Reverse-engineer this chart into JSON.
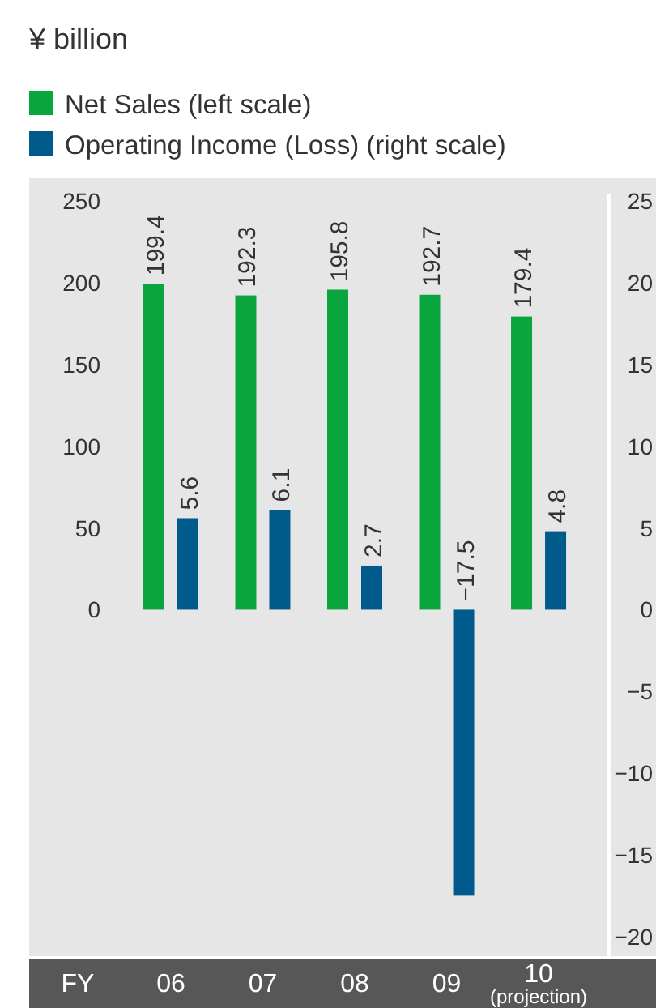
{
  "chart_data": {
    "type": "bar",
    "title": "¥ billion",
    "xlabel": "FY",
    "categories": [
      "06",
      "07",
      "08",
      "09",
      "10\n(projection)"
    ],
    "series": [
      {
        "name": "Net Sales (left scale)",
        "color": "#0aa53c",
        "values": [
          199.4,
          192.3,
          195.8,
          192.7,
          179.4
        ],
        "value_labels": [
          "199.4",
          "192.3",
          "195.8",
          "192.7",
          "179.4"
        ]
      },
      {
        "name": "Operating Income (Loss) (right scale)",
        "color": "#005a8c",
        "axis": "y2",
        "values": [
          5.6,
          6.1,
          2.7,
          -17.5,
          4.8
        ],
        "value_labels": [
          "5.6",
          "6.1",
          "2.7",
          "−17.5",
          "4.8"
        ]
      }
    ],
    "ylim": [
      -212,
      262
    ],
    "yticks": [
      0,
      50,
      100,
      150,
      200,
      250
    ],
    "y2lim": [
      -21.2,
      26.2
    ],
    "y2ticks": [
      {
        "value": -20,
        "label": "−20"
      },
      {
        "value": -15,
        "label": "−15"
      },
      {
        "value": -10,
        "label": "−10"
      },
      {
        "value": -5,
        "label": "−5"
      },
      0,
      5,
      10,
      15,
      20,
      25
    ],
    "grid": false,
    "legend": "top left"
  }
}
